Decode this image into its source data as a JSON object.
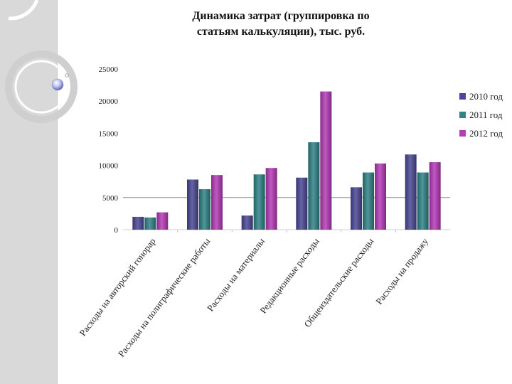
{
  "slide": {
    "title_line1": "Динамика затрат (группировка по",
    "title_line2": "статьям калькуляции), тыс. руб."
  },
  "chart_data": {
    "type": "bar",
    "title": "Динамика затрат (группировка по статьям калькуляции), тыс. руб.",
    "xlabel": "",
    "ylabel": "",
    "ylim": [
      0,
      25000
    ],
    "yticks": [
      0,
      5000,
      10000,
      15000,
      20000,
      25000
    ],
    "y_tick_labels": [
      "0",
      "5000",
      "10000",
      "15000",
      "20000",
      "25000"
    ],
    "gridlines": [
      5000
    ],
    "legend_position": "right",
    "categories": [
      "Расходы на авторский гонорар",
      "Расходы на полиграфические работы",
      "Расходы на материалы",
      "Редакционные расходы",
      "Общеиздательские расходы",
      "Расходы на продажу"
    ],
    "series": [
      {
        "name": "2010 год",
        "color": "#4b4796",
        "values": [
          2000,
          7800,
          2200,
          8100,
          6600,
          11700
        ]
      },
      {
        "name": "2011 год",
        "color": "#2f8487",
        "values": [
          1900,
          6300,
          8600,
          13600,
          8900,
          8900
        ]
      },
      {
        "name": "2012 год",
        "color": "#b63bb8",
        "values": [
          2700,
          8500,
          9600,
          21500,
          10300,
          10500
        ]
      }
    ]
  }
}
